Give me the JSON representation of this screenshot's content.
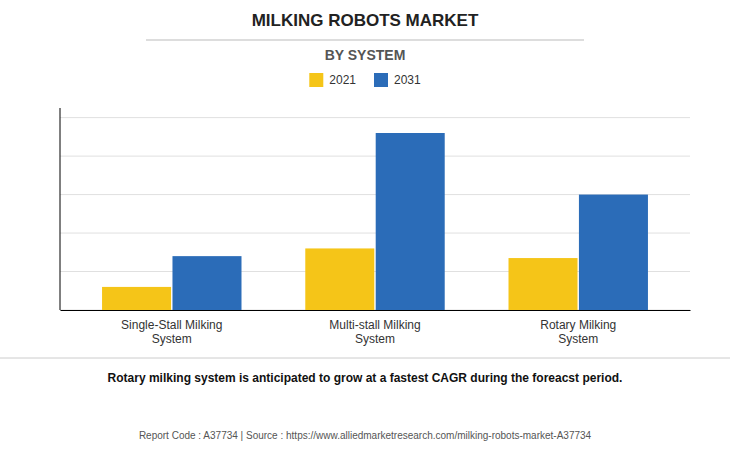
{
  "chart_data": {
    "type": "bar",
    "title": "MILKING ROBOTS MARKET",
    "subtitle": "BY SYSTEM",
    "categories": [
      "Single-Stall Milking\nSystem",
      "Multi-stall Milking\nSystem",
      "Rotary Milking\nSystem"
    ],
    "series": [
      {
        "name": "2021",
        "color": "#F5C518",
        "values": [
          0.12,
          0.32,
          0.27
        ]
      },
      {
        "name": "2031",
        "color": "#2B6CB8",
        "values": [
          0.28,
          0.92,
          0.6
        ]
      }
    ],
    "ylim": [
      0,
      1.05
    ],
    "yticks": [
      0,
      0.2,
      0.4,
      0.6,
      0.8,
      1.0
    ],
    "grid": true,
    "legend": "top",
    "tick_labels": "x",
    "annotations": [
      "Rotary milking system is anticipated to grow at a fastest CAGR during the foreacst period.",
      "Report Code : A37734  |  Source : https://www.alliedmarketresearch.com/milking-robots-market-A37734"
    ]
  }
}
